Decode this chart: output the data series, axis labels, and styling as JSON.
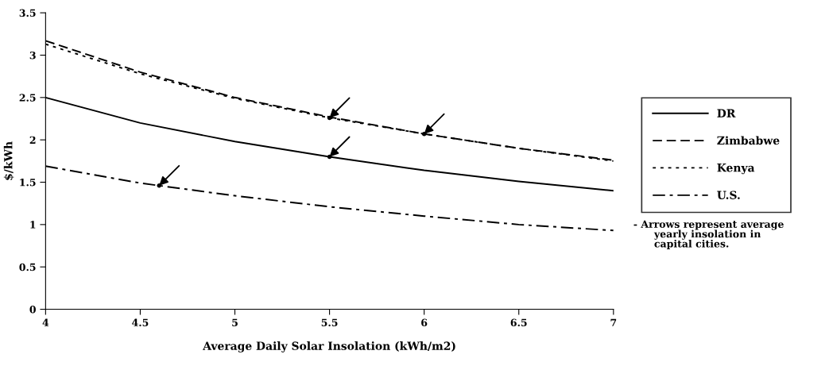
{
  "chart_data": {
    "type": "line",
    "xlabel": "Average Daily Solar Insolation (kWh/m2)",
    "ylabel": "$/kWh",
    "x": [
      4,
      4.5,
      5,
      5.5,
      6,
      6.5,
      7
    ],
    "series": [
      {
        "name": "DR",
        "color": "#000000",
        "line_style": "solid",
        "values": [
          2.5,
          2.2,
          1.98,
          1.8,
          1.64,
          1.51,
          1.4
        ]
      },
      {
        "name": "Zimbabwe",
        "color": "#000000",
        "line_style": "dashed",
        "values": [
          3.17,
          2.8,
          2.5,
          2.27,
          2.07,
          1.9,
          1.76
        ]
      },
      {
        "name": "Kenya",
        "color": "#000000",
        "line_style": "dotted",
        "values": [
          3.13,
          2.78,
          2.49,
          2.26,
          2.07,
          1.9,
          1.75
        ]
      },
      {
        "name": "U.S.",
        "color": "#000000",
        "line_style": "dashdot",
        "values": [
          1.69,
          1.49,
          1.34,
          1.21,
          1.1,
          1.0,
          0.93
        ]
      },
      {
        "type": "scatter",
        "color": "#000000",
        "x": [
          5.5,
          6,
          5.5,
          4.6
        ],
        "values": [
          2.26,
          2.07,
          1.8,
          1.46
        ]
      }
    ],
    "xlim": [
      4,
      7
    ],
    "xticks": [
      4,
      4.5,
      5,
      5.5,
      6,
      6.5,
      7
    ],
    "ylim": [
      0,
      3.5
    ],
    "yticks": [
      0,
      0.5,
      1,
      1.5,
      2,
      2.5,
      3,
      3.5
    ],
    "grid": false,
    "legend": "right",
    "marker": "none",
    "annotations": [
      "- Arrows represent average\n      yearly insolation in\n      capital cities."
    ]
  }
}
